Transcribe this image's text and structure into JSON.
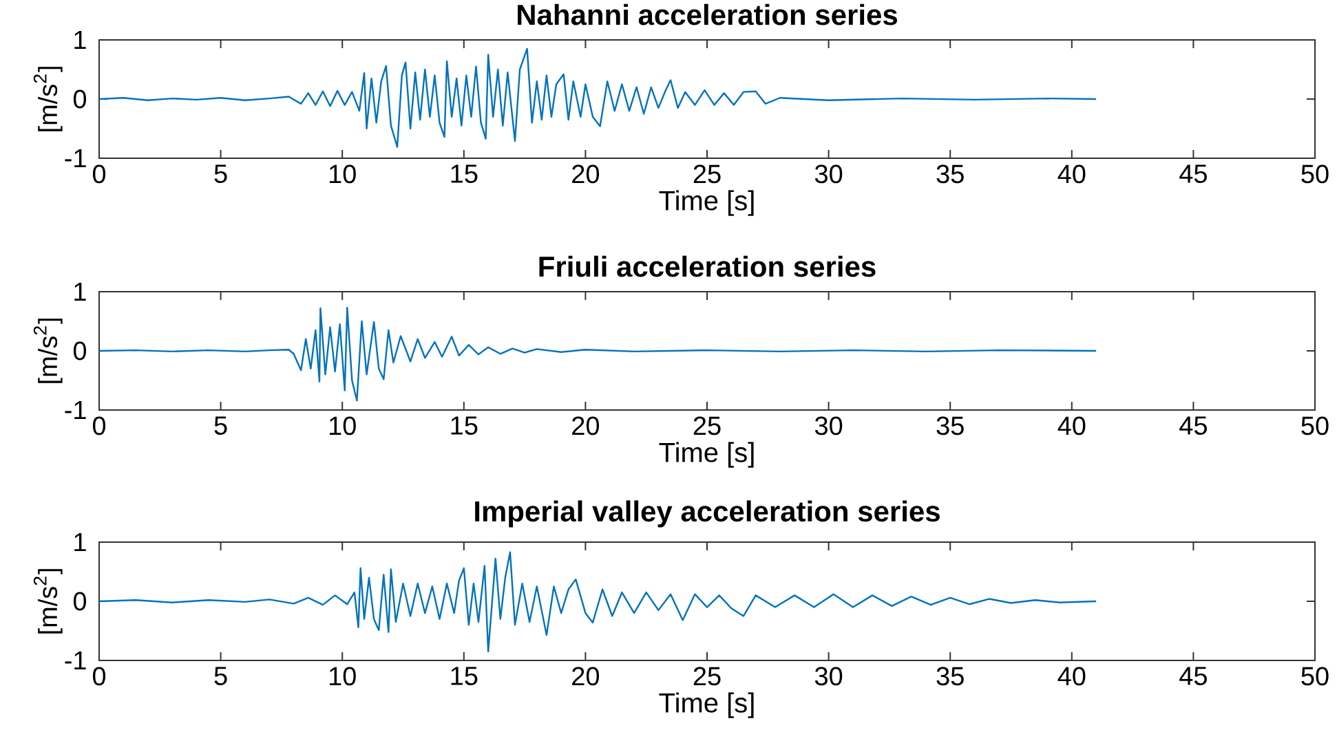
{
  "chart_data": [
    {
      "type": "line",
      "title": "Nahanni acceleration series",
      "xlabel": "Time [s]",
      "ylabel": "[m/s$^{2}$]",
      "color": "#0072bd",
      "x": [
        0,
        1,
        2,
        3,
        4,
        5,
        6,
        7,
        7.8,
        8.3,
        8.6,
        8.9,
        9.2,
        9.5,
        9.8,
        10.1,
        10.4,
        10.7,
        10.9,
        11.0,
        11.2,
        11.4,
        11.6,
        11.8,
        12.0,
        12.26,
        12.45,
        12.6,
        12.8,
        13.0,
        13.2,
        13.4,
        13.6,
        13.8,
        14.0,
        14.2,
        14.3,
        14.5,
        14.7,
        14.9,
        15.1,
        15.3,
        15.5,
        15.7,
        15.9,
        16.0,
        16.2,
        16.4,
        16.6,
        16.8,
        17.1,
        17.3,
        17.6,
        17.8,
        18.0,
        18.2,
        18.4,
        18.6,
        18.8,
        19.1,
        19.3,
        19.5,
        19.8,
        20.0,
        20.3,
        20.6,
        20.9,
        21.2,
        21.5,
        21.8,
        22.1,
        22.4,
        22.7,
        23.0,
        23.3,
        23.5,
        23.8,
        24.1,
        24.5,
        24.9,
        25.3,
        25.7,
        26.1,
        26.5,
        27.0,
        27.4,
        28,
        30,
        33,
        36,
        39,
        41
      ],
      "values": [
        0,
        0.02,
        -0.02,
        0.01,
        -0.01,
        0.02,
        -0.02,
        0.01,
        0.04,
        -0.08,
        0.1,
        -0.1,
        0.13,
        -0.12,
        0.14,
        -0.1,
        0.12,
        -0.2,
        0.44,
        -0.5,
        0.35,
        -0.4,
        0.3,
        0.56,
        -0.45,
        -0.81,
        0.4,
        0.62,
        -0.5,
        0.45,
        -0.35,
        0.5,
        -0.3,
        0.4,
        -0.4,
        -0.64,
        0.64,
        -0.3,
        0.35,
        -0.45,
        0.4,
        -0.3,
        0.55,
        -0.4,
        -0.67,
        0.75,
        -0.3,
        0.5,
        -0.45,
        0.45,
        -0.71,
        0.5,
        0.85,
        -0.4,
        0.3,
        -0.35,
        0.4,
        -0.3,
        0.25,
        0.42,
        -0.35,
        0.3,
        -0.3,
        0.25,
        -0.3,
        -0.46,
        0.3,
        -0.2,
        0.25,
        -0.2,
        0.2,
        -0.25,
        0.2,
        -0.15,
        0.15,
        0.32,
        -0.15,
        0.12,
        -0.1,
        0.15,
        -0.1,
        0.1,
        -0.1,
        0.12,
        0.13,
        -0.08,
        0.02,
        -0.02,
        0.01,
        -0.01,
        0.01,
        0
      ],
      "xlim": [
        0,
        50
      ],
      "ylim": [
        -1,
        1
      ],
      "xticks": [
        0,
        5,
        10,
        15,
        20,
        25,
        30,
        35,
        40,
        45,
        50
      ],
      "yticks": [
        -1,
        0,
        1
      ]
    },
    {
      "type": "line",
      "title": "Friuli acceleration series",
      "xlabel": "Time [s]",
      "ylabel": "[m/s$^{2}$]",
      "color": "#0072bd",
      "x": [
        0,
        1.5,
        3,
        4.5,
        6,
        7,
        7.8,
        8.0,
        8.3,
        8.5,
        8.7,
        8.9,
        9.06,
        9.1,
        9.3,
        9.5,
        9.7,
        9.9,
        10.1,
        10.2,
        10.4,
        10.6,
        10.8,
        11.0,
        11.3,
        11.5,
        11.7,
        11.9,
        12.1,
        12.4,
        12.8,
        13.1,
        13.4,
        13.8,
        14.1,
        14.5,
        14.8,
        15.2,
        15.6,
        16.0,
        16.5,
        17,
        17.5,
        18,
        19,
        20,
        22,
        25,
        28,
        31,
        34,
        37,
        41
      ],
      "values": [
        0,
        0.01,
        -0.01,
        0.01,
        -0.01,
        0.01,
        0.02,
        -0.05,
        -0.33,
        0.2,
        -0.3,
        0.35,
        -0.52,
        0.72,
        -0.4,
        0.4,
        -0.35,
        0.45,
        -0.67,
        0.73,
        -0.5,
        -0.84,
        0.5,
        -0.4,
        0.49,
        -0.3,
        -0.48,
        0.35,
        -0.2,
        0.25,
        -0.18,
        0.2,
        -0.12,
        0.15,
        -0.1,
        0.24,
        -0.08,
        0.1,
        -0.06,
        0.06,
        -0.05,
        0.04,
        -0.03,
        0.03,
        -0.02,
        0.02,
        -0.01,
        0.01,
        -0.01,
        0.01,
        -0.01,
        0.01,
        0
      ],
      "xlim": [
        0,
        50
      ],
      "ylim": [
        -1,
        1
      ],
      "xticks": [
        0,
        5,
        10,
        15,
        20,
        25,
        30,
        35,
        40,
        45,
        50
      ],
      "yticks": [
        -1,
        0,
        1
      ]
    },
    {
      "type": "line",
      "title": "Imperial valley acceleration series",
      "xlabel": "Time [s]",
      "ylabel": "[m/s$^{2}$]",
      "color": "#0072bd",
      "x": [
        0,
        1.5,
        3,
        4.5,
        6,
        7,
        8,
        8.6,
        9.2,
        9.7,
        10.2,
        10.5,
        10.66,
        10.75,
        10.9,
        11.1,
        11.3,
        11.5,
        11.7,
        11.9,
        12.0,
        12.2,
        12.5,
        12.8,
        13.1,
        13.4,
        13.7,
        14.0,
        14.3,
        14.6,
        14.8,
        15.0,
        15.2,
        15.4,
        15.6,
        15.85,
        16.0,
        16.3,
        16.5,
        16.7,
        16.9,
        17.1,
        17.4,
        17.7,
        18.0,
        18.4,
        18.7,
        19.0,
        19.3,
        19.6,
        20.0,
        20.3,
        20.7,
        21.1,
        21.5,
        22.0,
        22.5,
        23.0,
        23.5,
        24.0,
        24.5,
        25.0,
        25.5,
        26.0,
        26.5,
        27.0,
        27.8,
        28.6,
        29.4,
        30.2,
        31,
        31.8,
        32.6,
        33.4,
        34.2,
        35,
        35.8,
        36.6,
        37.5,
        38.5,
        39.5,
        41
      ],
      "values": [
        0,
        0.02,
        -0.02,
        0.02,
        -0.01,
        0.03,
        -0.04,
        0.06,
        -0.06,
        0.1,
        -0.05,
        0.15,
        -0.44,
        0.56,
        -0.3,
        0.4,
        -0.3,
        -0.49,
        0.45,
        -0.52,
        0.54,
        -0.35,
        0.3,
        -0.25,
        0.3,
        -0.2,
        0.25,
        -0.3,
        0.3,
        -0.2,
        0.35,
        0.56,
        -0.4,
        0.3,
        -0.35,
        0.6,
        -0.85,
        0.72,
        -0.3,
        0.4,
        0.83,
        -0.4,
        0.3,
        -0.35,
        0.25,
        -0.57,
        0.25,
        -0.2,
        0.2,
        0.37,
        -0.2,
        -0.36,
        0.2,
        -0.25,
        0.15,
        -0.2,
        0.15,
        -0.15,
        0.12,
        -0.32,
        0.12,
        -0.1,
        0.1,
        -0.12,
        -0.25,
        0.1,
        -0.1,
        0.1,
        -0.1,
        0.12,
        -0.1,
        0.1,
        -0.08,
        0.08,
        -0.06,
        0.06,
        -0.05,
        0.04,
        -0.03,
        0.02,
        -0.02,
        0
      ],
      "xlim": [
        0,
        50
      ],
      "ylim": [
        -1,
        1
      ],
      "xticks": [
        0,
        5,
        10,
        15,
        20,
        25,
        30,
        35,
        40,
        45,
        50
      ],
      "yticks": [
        -1,
        0,
        1
      ]
    }
  ]
}
